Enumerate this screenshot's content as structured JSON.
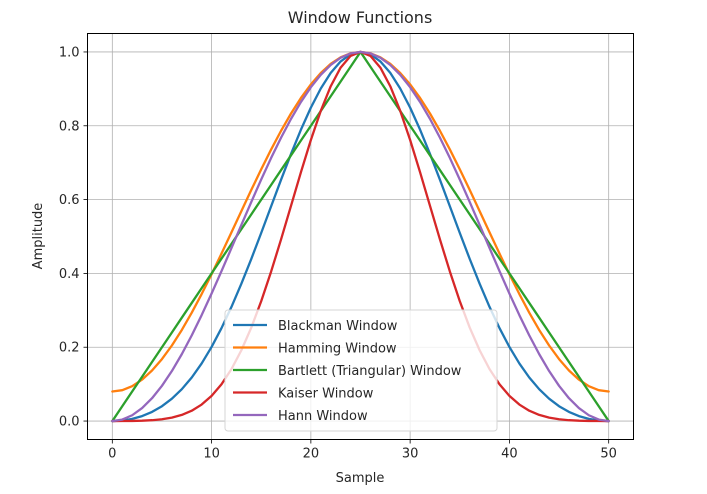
{
  "chart_data": {
    "type": "line",
    "title": "Window Functions",
    "xlabel": "Sample",
    "ylabel": "Amplitude",
    "xlim": [
      -2.5,
      52.5
    ],
    "ylim": [
      -0.05,
      1.05
    ],
    "xticks": [
      0,
      10,
      20,
      30,
      40,
      50
    ],
    "xtick_labels": [
      "0",
      "10",
      "20",
      "30",
      "40",
      "50"
    ],
    "yticks": [
      0.0,
      0.2,
      0.4,
      0.6,
      0.8,
      1.0
    ],
    "ytick_labels": [
      "0.0",
      "0.2",
      "0.4",
      "0.6",
      "0.8",
      "1.0"
    ],
    "grid": true,
    "legend_position": "lower center",
    "x": [
      0,
      1,
      2,
      3,
      4,
      5,
      6,
      7,
      8,
      9,
      10,
      11,
      12,
      13,
      14,
      15,
      16,
      17,
      18,
      19,
      20,
      21,
      22,
      23,
      24,
      25,
      26,
      27,
      28,
      29,
      30,
      31,
      32,
      33,
      34,
      35,
      36,
      37,
      38,
      39,
      40,
      41,
      42,
      43,
      44,
      45,
      46,
      47,
      48,
      49,
      50
    ],
    "series": [
      {
        "name": "Blackman Window",
        "color": "#1f77b4",
        "window": "blackman",
        "params": {
          "N": 51
        }
      },
      {
        "name": "Hamming Window",
        "color": "#ff7f0e",
        "window": "hamming",
        "params": {
          "N": 51
        }
      },
      {
        "name": "Bartlett (Triangular) Window",
        "color": "#2ca02c",
        "window": "bartlett",
        "params": {
          "N": 51
        }
      },
      {
        "name": "Kaiser Window",
        "color": "#d62728",
        "window": "kaiser",
        "params": {
          "N": 51,
          "beta": 14
        }
      },
      {
        "name": "Hann Window",
        "color": "#9467bd",
        "window": "hann",
        "params": {
          "N": 51
        }
      }
    ]
  }
}
